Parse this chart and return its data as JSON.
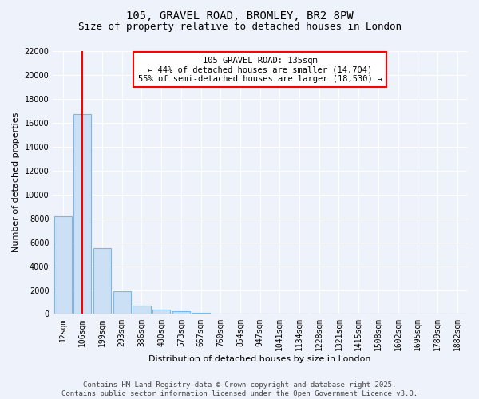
{
  "title": "105, GRAVEL ROAD, BROMLEY, BR2 8PW",
  "subtitle": "Size of property relative to detached houses in London",
  "xlabel": "Distribution of detached houses by size in London",
  "ylabel": "Number of detached properties",
  "bar_labels": [
    "12sqm",
    "106sqm",
    "199sqm",
    "293sqm",
    "386sqm",
    "480sqm",
    "573sqm",
    "667sqm",
    "760sqm",
    "854sqm",
    "947sqm",
    "1041sqm",
    "1134sqm",
    "1228sqm",
    "1321sqm",
    "1415sqm",
    "1508sqm",
    "1602sqm",
    "1695sqm",
    "1789sqm",
    "1882sqm"
  ],
  "bar_values": [
    8200,
    16700,
    5500,
    1900,
    700,
    380,
    200,
    90,
    55,
    35,
    20,
    12,
    8,
    6,
    4,
    3,
    2,
    2,
    1,
    1,
    1
  ],
  "bar_color": "#cce0f5",
  "bar_edge_color": "#7ab8e8",
  "ylim": [
    0,
    22000
  ],
  "red_line_x": 1.0,
  "annotation_line1": "105 GRAVEL ROAD: 135sqm",
  "annotation_line2": "← 44% of detached houses are smaller (14,704)",
  "annotation_line3": "55% of semi-detached houses are larger (18,530) →",
  "footer_line1": "Contains HM Land Registry data © Crown copyright and database right 2025.",
  "footer_line2": "Contains public sector information licensed under the Open Government Licence v3.0.",
  "background_color": "#eef2fa",
  "grid_color": "#ffffff",
  "title_fontsize": 10,
  "subtitle_fontsize": 9,
  "axis_label_fontsize": 8,
  "tick_fontsize": 7,
  "annotation_fontsize": 7.5,
  "footer_fontsize": 6.5,
  "yticks": [
    0,
    2000,
    4000,
    6000,
    8000,
    10000,
    12000,
    14000,
    16000,
    18000,
    20000,
    22000
  ]
}
